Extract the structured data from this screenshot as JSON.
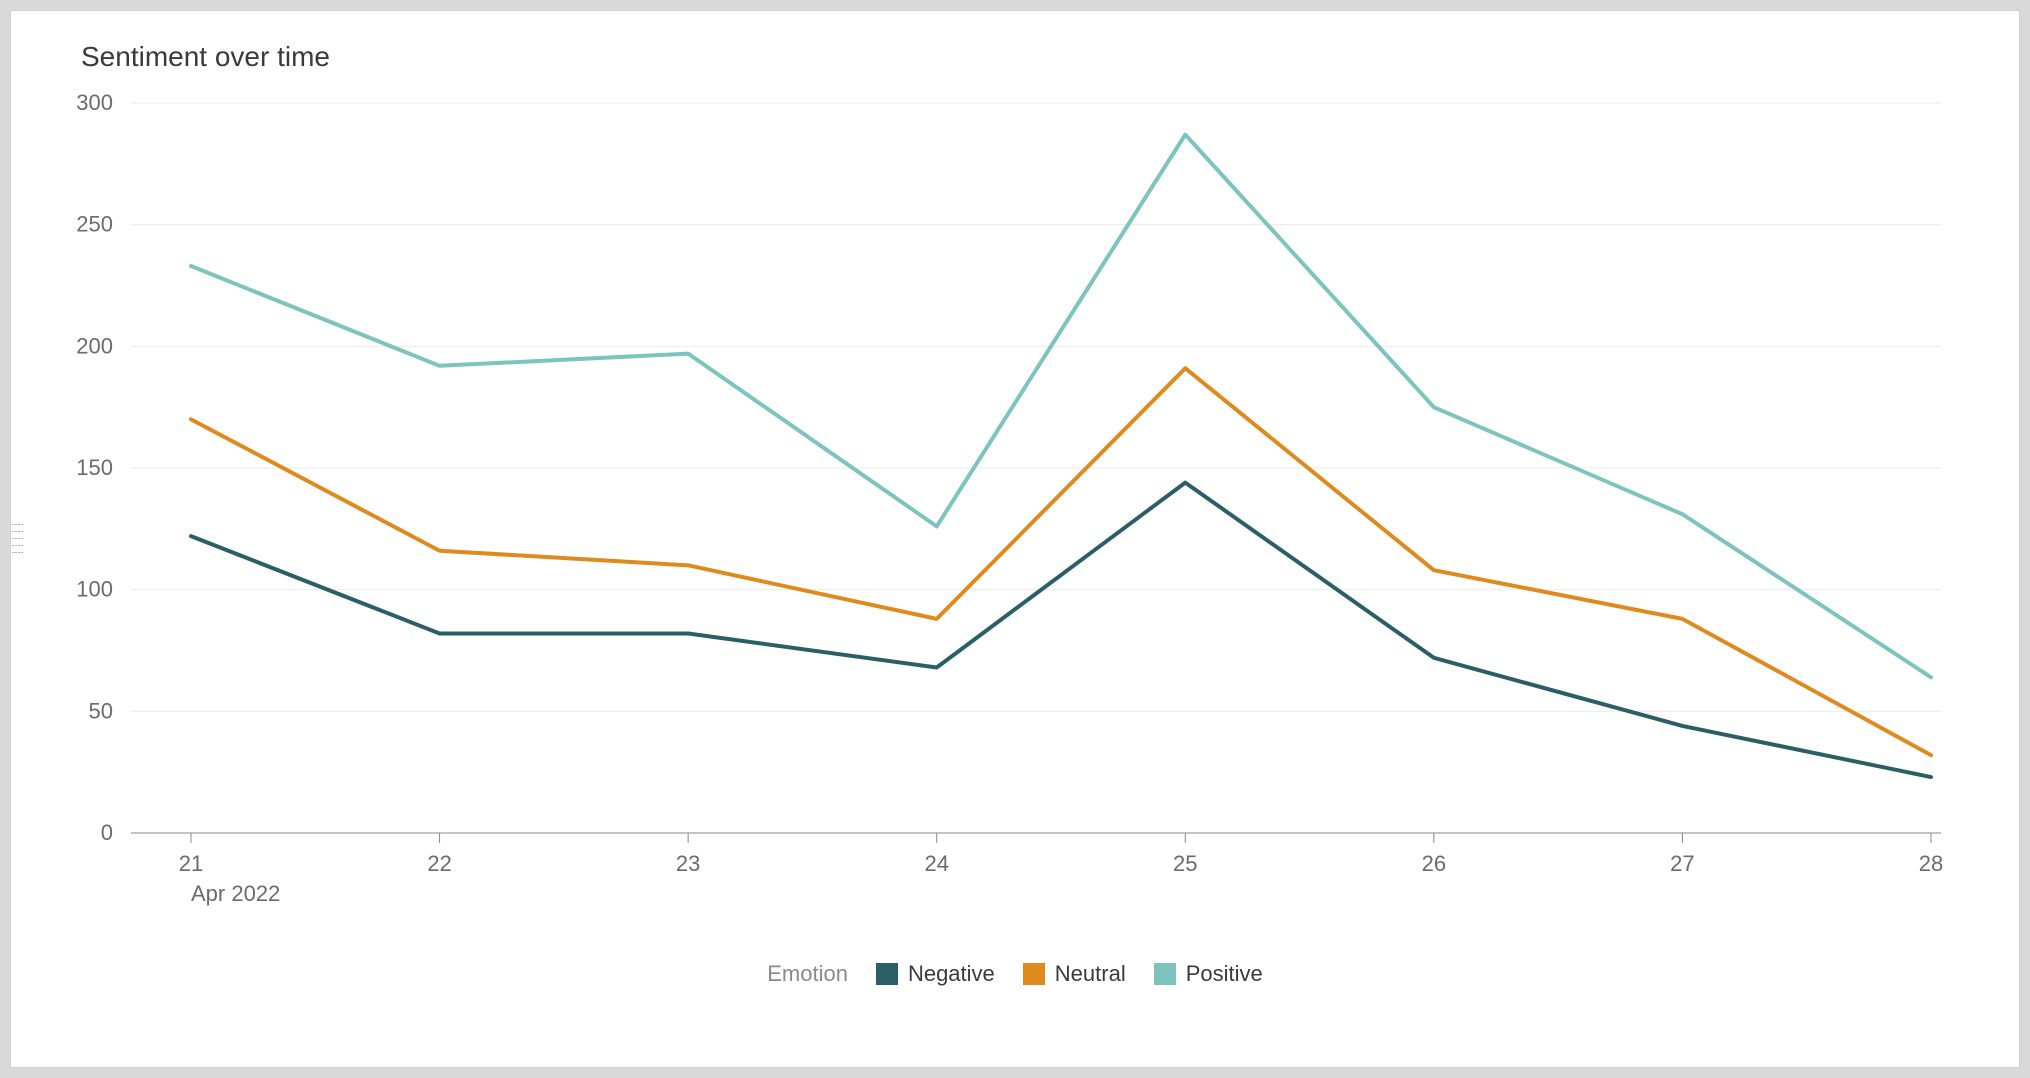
{
  "chart": {
    "type": "line",
    "title": "Sentiment over time",
    "title_fontsize": 28,
    "title_color": "#3a3a3a",
    "background_color": "#ffffff",
    "panel_border_color": "#d0d0d0",
    "outer_background_color": "#d9d9d9",
    "grid_color": "#ebebeb",
    "axis_line_color": "#888888",
    "axis_label_color": "#6b6b6b",
    "axis_label_fontsize": 22,
    "line_width": 4,
    "x": {
      "categories": [
        "21",
        "22",
        "23",
        "24",
        "25",
        "26",
        "27",
        "28"
      ],
      "sublabel_index": 0,
      "sublabel": "Apr 2022"
    },
    "y": {
      "min": 0,
      "max": 300,
      "tick_step": 50,
      "ticks": [
        0,
        50,
        100,
        150,
        200,
        250,
        300
      ]
    },
    "series": [
      {
        "name": "Negative",
        "color": "#2b5f67",
        "values": [
          122,
          82,
          82,
          68,
          144,
          72,
          44,
          23
        ]
      },
      {
        "name": "Neutral",
        "color": "#e08a1e",
        "values": [
          170,
          116,
          110,
          88,
          191,
          108,
          88,
          32
        ]
      },
      {
        "name": "Positive",
        "color": "#7cc4bd",
        "values": [
          233,
          192,
          197,
          126,
          287,
          175,
          131,
          64
        ]
      }
    ],
    "legend": {
      "title": "Emotion",
      "title_color": "#8a8a8a",
      "label_color": "#3a3a3a",
      "fontsize": 22,
      "position": "bottom-center"
    }
  }
}
